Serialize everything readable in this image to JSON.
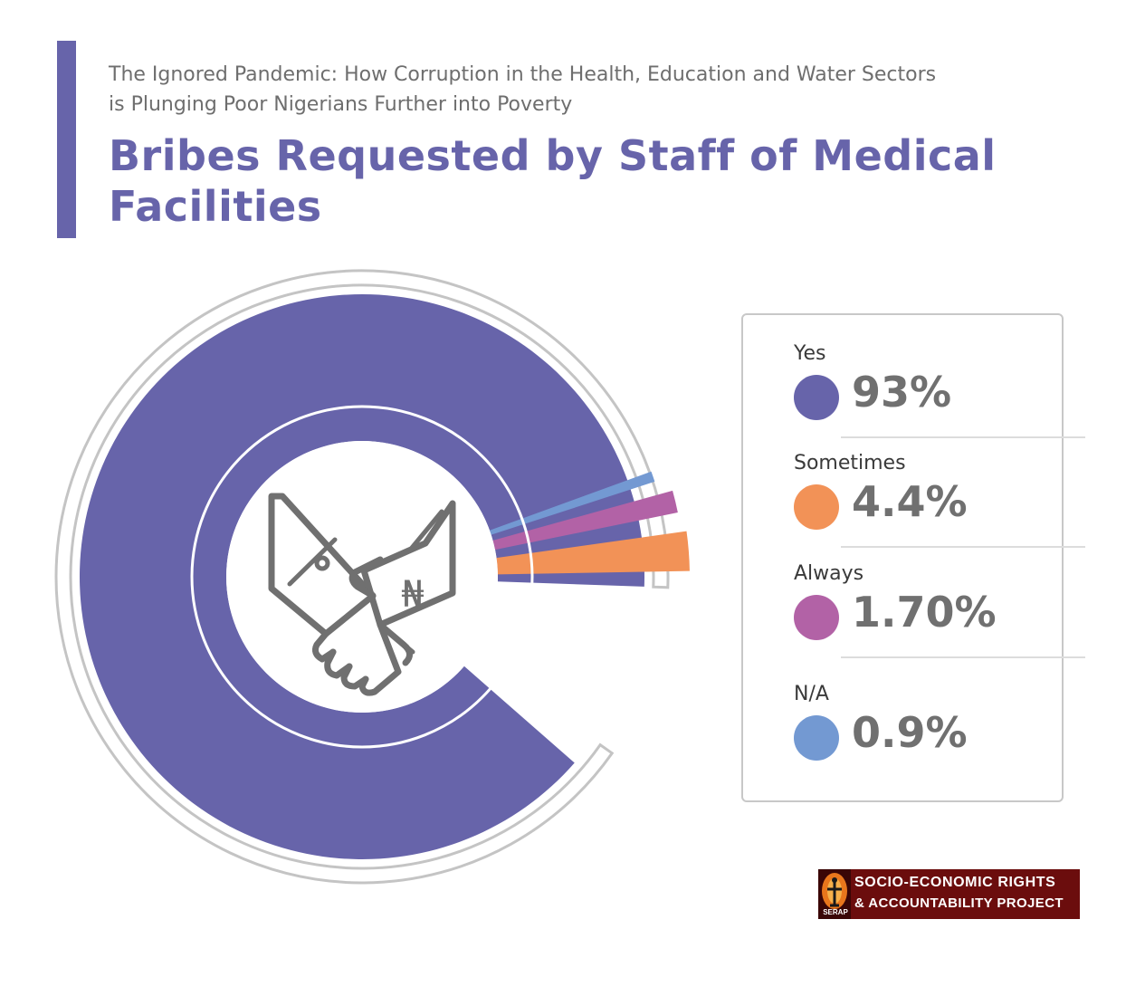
{
  "header": {
    "subtitle_line1": "The Ignored Pandemic: How Corruption in the Health, Education and Water Sectors",
    "subtitle_line2": "is Plunging Poor Nigerians Further into Poverty",
    "title_line1": "Bribes Requested by Staff of Medical",
    "title_line2": "Facilities"
  },
  "chart_data": {
    "type": "pie",
    "title": "Bribes Requested by Staff of Medical Facilities",
    "slices": [
      {
        "label": "Yes",
        "value": 93,
        "display": "93%",
        "color": "#6764aa"
      },
      {
        "label": "Sometimes",
        "value": 4.4,
        "display": "4.4%",
        "color": "#f29257"
      },
      {
        "label": "Always",
        "value": 1.7,
        "display": "1.70%",
        "color": "#b262a6"
      },
      {
        "label": "N/A",
        "value": 0.9,
        "display": "0.9%",
        "color": "#7399d2"
      }
    ],
    "legend_position": "right"
  },
  "center_icon": {
    "name": "handshake-money-icon",
    "symbol": "₦"
  },
  "logo": {
    "line1": "SOCIO-ECONOMIC RIGHTS",
    "line2": "& ACCOUNTABILITY PROJECT",
    "short": "SERAP"
  }
}
